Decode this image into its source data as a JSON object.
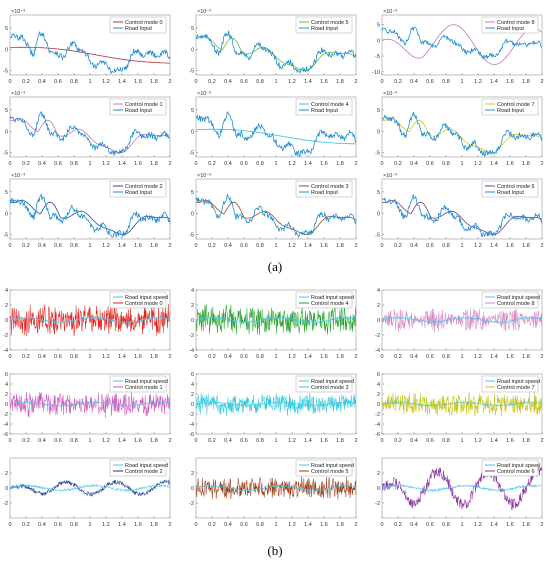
{
  "figure": {
    "panel_a_label": "(a)",
    "panel_b_label": "(b)"
  },
  "chart_data": [
    {
      "id": "a1",
      "panel": "a",
      "type": "line",
      "exponent": "×10⁻³",
      "xlim": [
        0,
        2
      ],
      "ylim": [
        -6,
        8
      ],
      "yticks": [
        5,
        0,
        -5
      ],
      "xticks": [
        "0",
        "0.2",
        "0.4",
        "0.6",
        "0.8",
        "1",
        "1.2",
        "1.4",
        "1.6",
        "1.8",
        "2"
      ],
      "series": [
        {
          "name": "Control mode 0",
          "color": "#b5323a",
          "model": "drift",
          "param": -3.5
        },
        {
          "name": "Road Input",
          "color": "#1f8fd1",
          "model": "road"
        }
      ]
    },
    {
      "id": "a2",
      "panel": "a",
      "type": "line",
      "exponent": "×10⁻³",
      "xlim": [
        0,
        2
      ],
      "ylim": [
        -6,
        8
      ],
      "yticks": [
        5,
        0,
        -5
      ],
      "xticks": [
        "0",
        "0.2",
        "0.4",
        "0.6",
        "0.8",
        "1",
        "1.2",
        "1.4",
        "1.6",
        "1.8",
        "2"
      ],
      "series": [
        {
          "name": "Control mode 5",
          "color": "#6bbf2c",
          "model": "smooth",
          "param": 0.03
        },
        {
          "name": "Road Input",
          "color": "#1f8fd1",
          "model": "road"
        }
      ]
    },
    {
      "id": "a3",
      "panel": "a",
      "type": "line",
      "exponent": "×10⁻³",
      "xlim": [
        0,
        2
      ],
      "ylim": [
        -11,
        8
      ],
      "yticks": [
        5,
        0,
        -5,
        -10
      ],
      "xticks": [
        "0",
        "0.2",
        "0.4",
        "0.6",
        "0.8",
        "1",
        "1.2",
        "1.4",
        "1.6",
        "1.8",
        "2"
      ],
      "series": [
        {
          "name": "Control mode 8",
          "color": "#c774c4",
          "model": "osc",
          "param": 6
        },
        {
          "name": "Road Input",
          "color": "#1f8fd1",
          "model": "road"
        }
      ]
    },
    {
      "id": "a4",
      "panel": "a",
      "type": "line",
      "exponent": "×10⁻³",
      "xlim": [
        0,
        2
      ],
      "ylim": [
        -6,
        8
      ],
      "yticks": [
        5,
        0,
        -5
      ],
      "xticks": [
        "0",
        "0.2",
        "0.4",
        "0.6",
        "0.8",
        "1",
        "1.2",
        "1.4",
        "1.6",
        "1.8",
        "2"
      ],
      "series": [
        {
          "name": "Control mode 1",
          "color": "#c774c4",
          "model": "smooth",
          "param": 0.05
        },
        {
          "name": "Road Input",
          "color": "#1f8fd1",
          "model": "road"
        }
      ]
    },
    {
      "id": "a5",
      "panel": "a",
      "type": "line",
      "exponent": "×10⁻³",
      "xlim": [
        0,
        2
      ],
      "ylim": [
        -6,
        8
      ],
      "yticks": [
        5,
        0,
        -5
      ],
      "xticks": [
        "0",
        "0.2",
        "0.4",
        "0.6",
        "0.8",
        "1",
        "1.2",
        "1.4",
        "1.6",
        "1.8",
        "2"
      ],
      "series": [
        {
          "name": "Control mode 4",
          "color": "#35c0d6",
          "model": "drift",
          "param": -3.2
        },
        {
          "name": "Road Input",
          "color": "#1f8fd1",
          "model": "road"
        }
      ]
    },
    {
      "id": "a6",
      "panel": "a",
      "type": "line",
      "exponent": "×10⁻³",
      "xlim": [
        0,
        2
      ],
      "ylim": [
        -6,
        8
      ],
      "yticks": [
        5,
        0,
        -5
      ],
      "xticks": [
        "0",
        "0.2",
        "0.4",
        "0.6",
        "0.8",
        "1",
        "1.2",
        "1.4",
        "1.6",
        "1.8",
        "2"
      ],
      "series": [
        {
          "name": "Control mode 7",
          "color": "#c8c81e",
          "model": "smooth",
          "param": 0.04
        },
        {
          "name": "Road Input",
          "color": "#1f8fd1",
          "model": "road"
        }
      ]
    },
    {
      "id": "a7",
      "panel": "a",
      "type": "line",
      "exponent": "×10⁻³",
      "xlim": [
        0,
        2
      ],
      "ylim": [
        -6,
        8
      ],
      "yticks": [
        5,
        0,
        -5
      ],
      "xticks": [
        "0",
        "0.2",
        "0.4",
        "0.6",
        "0.8",
        "1",
        "1.2",
        "1.4",
        "1.6",
        "1.8",
        "2"
      ],
      "series": [
        {
          "name": "Control mode 2",
          "color": "#1f4fa3",
          "model": "smooth",
          "param": 0.08
        },
        {
          "name": "Road Input",
          "color": "#1f8fd1",
          "model": "road"
        }
      ]
    },
    {
      "id": "a8",
      "panel": "a",
      "type": "line",
      "exponent": "×10⁻³",
      "xlim": [
        0,
        2
      ],
      "ylim": [
        -6,
        8
      ],
      "yticks": [
        5,
        0,
        -5
      ],
      "xticks": [
        "0",
        "0.2",
        "0.4",
        "0.6",
        "0.8",
        "1",
        "1.2",
        "1.4",
        "1.6",
        "1.8",
        "2"
      ],
      "series": [
        {
          "name": "Control mode 3",
          "color": "#9c4a2f",
          "model": "smooth",
          "param": 0.05
        },
        {
          "name": "Road Input",
          "color": "#1f8fd1",
          "model": "road"
        }
      ]
    },
    {
      "id": "a9",
      "panel": "a",
      "type": "line",
      "exponent": "×10⁻³",
      "xlim": [
        0,
        2
      ],
      "ylim": [
        -6,
        8
      ],
      "yticks": [
        5,
        0,
        -5
      ],
      "xticks": [
        "0",
        "0.2",
        "0.4",
        "0.6",
        "0.8",
        "1",
        "1.2",
        "1.4",
        "1.6",
        "1.8",
        "2"
      ],
      "series": [
        {
          "name": "Control mode 6",
          "color": "#7a3a8c",
          "model": "smooth",
          "param": 0.06
        },
        {
          "name": "Road Input",
          "color": "#1f8fd1",
          "model": "road"
        }
      ]
    },
    {
      "id": "b1",
      "panel": "b",
      "type": "line",
      "xlim": [
        0,
        2
      ],
      "ylim": [
        -4,
        4
      ],
      "yticks": [
        4,
        2,
        0,
        -2,
        -4
      ],
      "xticks": [
        "0",
        "0.2",
        "0.4",
        "0.6",
        "0.8",
        "1",
        "1.2",
        "1.4",
        "1.6",
        "1.8",
        "2"
      ],
      "series": [
        {
          "name": "Road input speed",
          "color": "#4fc6e8",
          "model": "speed"
        },
        {
          "name": "Control mode 0",
          "color": "#e0201c",
          "model": "noise",
          "param": 1.6
        }
      ]
    },
    {
      "id": "b2",
      "panel": "b",
      "type": "line",
      "xlim": [
        0,
        2
      ],
      "ylim": [
        -4,
        4
      ],
      "yticks": [
        4,
        2,
        0,
        -2,
        -4
      ],
      "xticks": [
        "0",
        "0.2",
        "0.4",
        "0.6",
        "0.8",
        "1",
        "1.2",
        "1.4",
        "1.6",
        "1.8",
        "2"
      ],
      "series": [
        {
          "name": "Road input speed",
          "color": "#4fc6e8",
          "model": "speed"
        },
        {
          "name": "Control mode 4",
          "color": "#22a02a",
          "model": "noise",
          "param": 1.5
        }
      ]
    },
    {
      "id": "b3",
      "panel": "b",
      "type": "line",
      "xlim": [
        0,
        2
      ],
      "ylim": [
        -4,
        4
      ],
      "yticks": [
        4,
        2,
        0,
        -2,
        -4
      ],
      "xticks": [
        "0",
        "0.2",
        "0.4",
        "0.6",
        "0.8",
        "1",
        "1.2",
        "1.4",
        "1.6",
        "1.8",
        "2"
      ],
      "series": [
        {
          "name": "Road input speed",
          "color": "#4fc6e8",
          "model": "speed"
        },
        {
          "name": "Control mode 8",
          "color": "#d68ac8",
          "model": "burst",
          "param": 1.2
        }
      ]
    },
    {
      "id": "b4",
      "panel": "b",
      "type": "line",
      "xlim": [
        0,
        2
      ],
      "ylim": [
        -6,
        6
      ],
      "yticks": [
        6,
        4,
        2,
        0,
        -2,
        -4,
        -6
      ],
      "xticks": [
        "0",
        "0.2",
        "0.4",
        "0.6",
        "0.8",
        "1",
        "1.2",
        "1.4",
        "1.6",
        "1.8",
        "2"
      ],
      "series": [
        {
          "name": "Road input speed",
          "color": "#4fc6e8",
          "model": "speed"
        },
        {
          "name": "Control mode 1",
          "color": "#d05ac0",
          "model": "noise",
          "param": 1.9
        }
      ]
    },
    {
      "id": "b5",
      "panel": "b",
      "type": "line",
      "xlim": [
        0,
        2
      ],
      "ylim": [
        -6,
        6
      ],
      "yticks": [
        6,
        4,
        2,
        0,
        -2,
        -4,
        -6
      ],
      "xticks": [
        "0",
        "0.2",
        "0.4",
        "0.6",
        "0.8",
        "1",
        "1.2",
        "1.4",
        "1.6",
        "1.8",
        "2"
      ],
      "series": [
        {
          "name": "Road input speed",
          "color": "#4fc6e8",
          "model": "speed"
        },
        {
          "name": "Control mode 3",
          "color": "#2ec8de",
          "model": "noise",
          "param": 1.6
        }
      ]
    },
    {
      "id": "b6",
      "panel": "b",
      "type": "line",
      "xlim": [
        0,
        2
      ],
      "ylim": [
        -6,
        6
      ],
      "yticks": [
        6,
        4,
        2,
        0,
        -2,
        -4,
        -6
      ],
      "xticks": [
        "0",
        "0.2",
        "0.4",
        "0.6",
        "0.8",
        "1",
        "1.2",
        "1.4",
        "1.6",
        "1.8",
        "2"
      ],
      "series": [
        {
          "name": "Road input speed",
          "color": "#4fc6e8",
          "model": "speed"
        },
        {
          "name": "Control mode 7",
          "color": "#c4c418",
          "model": "noise",
          "param": 1.7
        }
      ]
    },
    {
      "id": "b7",
      "panel": "b",
      "type": "line",
      "xlim": [
        0,
        2
      ],
      "ylim": [
        -4,
        4
      ],
      "yticks": [
        2,
        0,
        -2
      ],
      "xticks": [
        "0",
        "0.2",
        "0.4",
        "0.6",
        "0.8",
        "1",
        "1.2",
        "1.4",
        "1.6",
        "1.8",
        "2"
      ],
      "series": [
        {
          "name": "Road input speed",
          "color": "#4fc6e8",
          "model": "speed"
        },
        {
          "name": "Control mode 2",
          "color": "#1d3a9a",
          "model": "wave",
          "param": 0.8
        }
      ]
    },
    {
      "id": "b8",
      "panel": "b",
      "type": "line",
      "xlim": [
        0,
        2
      ],
      "ylim": [
        -4,
        4
      ],
      "yticks": [
        2,
        0,
        -2
      ],
      "xticks": [
        "0",
        "0.2",
        "0.4",
        "0.6",
        "0.8",
        "1",
        "1.2",
        "1.4",
        "1.6",
        "1.8",
        "2"
      ],
      "series": [
        {
          "name": "Road input speed",
          "color": "#4fc6e8",
          "model": "speed"
        },
        {
          "name": "Control mode 5",
          "color": "#a03a12",
          "model": "noise",
          "param": 1.1
        }
      ]
    },
    {
      "id": "b9",
      "panel": "b",
      "type": "line",
      "xlim": [
        0,
        2
      ],
      "ylim": [
        -4,
        4
      ],
      "yticks": [
        2,
        0,
        -2
      ],
      "xticks": [
        "0",
        "0.2",
        "0.4",
        "0.6",
        "0.8",
        "1",
        "1.2",
        "1.4",
        "1.6",
        "1.8",
        "2"
      ],
      "series": [
        {
          "name": "Road input speed",
          "color": "#4fc6e8",
          "model": "speed"
        },
        {
          "name": "Control mode 6",
          "color": "#8a2ea0",
          "model": "wave",
          "param": 2.2
        }
      ]
    }
  ]
}
